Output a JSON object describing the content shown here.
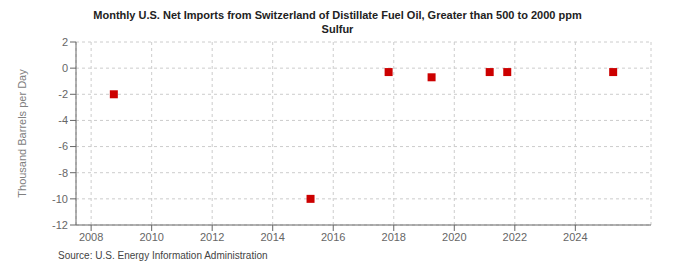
{
  "chart_data": {
    "type": "scatter",
    "title": "Monthly U.S. Net Imports from Switzerland of Distillate Fuel Oil, Greater than 500 to 2000 ppm\nSulfur",
    "ylabel": "Thousand Barrels per Day",
    "annotations": [
      "Source: U.S. Energy Information Administration"
    ],
    "x": [
      2008.75,
      2015.25,
      2017.83,
      2019.25,
      2021.17,
      2021.75,
      2025.25
    ],
    "values": [
      -2.0,
      -10.0,
      -0.3,
      -0.7,
      -0.3,
      -0.3,
      -0.3
    ],
    "color": "#cc0000",
    "marker": "square",
    "xlim": [
      2007.5,
      2026.5
    ],
    "xticks": [
      2008,
      2010,
      2012,
      2014,
      2016,
      2018,
      2020,
      2022,
      2024
    ],
    "ylim": [
      -12,
      2
    ],
    "yticks": [
      2,
      0,
      -2,
      -4,
      -6,
      -8,
      -10,
      -12
    ],
    "grid": true
  }
}
